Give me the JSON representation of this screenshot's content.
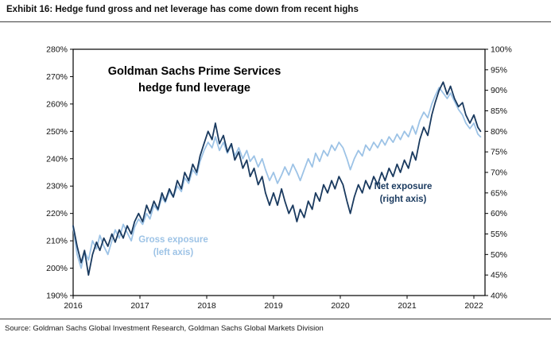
{
  "header": {
    "title": "Exhibit 16: Hedge fund gross and net leverage has come down from recent highs"
  },
  "footer": {
    "source": "Source: Goldman Sachs Global Investment Research, Goldman Sachs Global Markets Division"
  },
  "annotations": {
    "chart_title_line1": "Goldman Sachs Prime Services",
    "chart_title_line2": "hedge fund leverage",
    "net_label_line1": "Net exposure",
    "net_label_line2": "(right axis)",
    "gross_label_line1": "Gross exposure",
    "gross_label_line2": "(left axis)"
  },
  "colors": {
    "gross": "#9dc3e6",
    "net": "#1a3a5f",
    "axis": "#000000",
    "text": "#111111"
  },
  "chart_data": {
    "type": "line",
    "title": "Goldman Sachs Prime Services hedge fund leverage",
    "grid": false,
    "legend_position": "inline-annotations",
    "x_ticks": [
      "2016",
      "2017",
      "2018",
      "2019",
      "2020",
      "2021",
      "2022"
    ],
    "left_axis": {
      "min": 190,
      "max": 280,
      "step": 10,
      "labels": [
        "280%",
        "270%",
        "260%",
        "250%",
        "240%",
        "230%",
        "220%",
        "210%",
        "200%",
        "190%"
      ]
    },
    "right_axis": {
      "min": 40,
      "max": 100,
      "step": 5,
      "labels": [
        "100%",
        "95%",
        "90%",
        "85%",
        "80%",
        "75%",
        "70%",
        "65%",
        "60%",
        "55%",
        "50%",
        "45%",
        "40%"
      ]
    },
    "x": [
      2016.0,
      2016.06,
      2016.12,
      2016.17,
      2016.23,
      2016.29,
      2016.35,
      2016.4,
      2016.46,
      2016.52,
      2016.58,
      2016.63,
      2016.69,
      2016.75,
      2016.81,
      2016.87,
      2016.92,
      2016.98,
      2017.04,
      2017.1,
      2017.15,
      2017.21,
      2017.27,
      2017.33,
      2017.38,
      2017.44,
      2017.5,
      2017.56,
      2017.62,
      2017.67,
      2017.73,
      2017.79,
      2017.85,
      2017.9,
      2017.96,
      2018.02,
      2018.08,
      2018.13,
      2018.19,
      2018.25,
      2018.31,
      2018.37,
      2018.42,
      2018.48,
      2018.54,
      2018.6,
      2018.65,
      2018.71,
      2018.77,
      2018.83,
      2018.88,
      2018.94,
      2019.0,
      2019.06,
      2019.12,
      2019.17,
      2019.23,
      2019.29,
      2019.35,
      2019.4,
      2019.46,
      2019.52,
      2019.58,
      2019.63,
      2019.69,
      2019.75,
      2019.81,
      2019.87,
      2019.92,
      2019.98,
      2020.04,
      2020.1,
      2020.15,
      2020.21,
      2020.27,
      2020.33,
      2020.38,
      2020.44,
      2020.5,
      2020.56,
      2020.62,
      2020.67,
      2020.73,
      2020.79,
      2020.85,
      2020.9,
      2020.96,
      2021.02,
      2021.08,
      2021.13,
      2021.19,
      2021.25,
      2021.31,
      2021.37,
      2021.42,
      2021.48,
      2021.54,
      2021.6,
      2021.65,
      2021.71,
      2021.77,
      2021.83,
      2021.88,
      2021.94,
      2022.0,
      2022.06,
      2022.1
    ],
    "series": [
      {
        "name": "Gross exposure",
        "axis": "left",
        "color": "#9dc3e6",
        "values": [
          215,
          205,
          200,
          206,
          203,
          210,
          207,
          212,
          208,
          205,
          210,
          214,
          211,
          216,
          213,
          210,
          215,
          218,
          216,
          220,
          218,
          223,
          221,
          226,
          224,
          228,
          226,
          230,
          228,
          233,
          231,
          236,
          234,
          239,
          243,
          246,
          244,
          248,
          243,
          246,
          242,
          245,
          241,
          244,
          240,
          243,
          239,
          241,
          237,
          240,
          236,
          232,
          235,
          231,
          234,
          237,
          234,
          238,
          235,
          232,
          236,
          240,
          237,
          242,
          239,
          243,
          241,
          245,
          243,
          246,
          244,
          240,
          236,
          240,
          243,
          241,
          245,
          243,
          246,
          244,
          247,
          245,
          248,
          246,
          249,
          247,
          250,
          248,
          252,
          249,
          254,
          257,
          255,
          260,
          263,
          266,
          264,
          262,
          264,
          261,
          258,
          256,
          253,
          251,
          253,
          249,
          248
        ]
      },
      {
        "name": "Net exposure",
        "axis": "right",
        "color": "#1a3a5f",
        "values": [
          57,
          52,
          48,
          51,
          45,
          50,
          53,
          51,
          54,
          52,
          55,
          53,
          56,
          54,
          57,
          55,
          58,
          60,
          58,
          62,
          60,
          63,
          61,
          65,
          63,
          66,
          64,
          68,
          66,
          70,
          68,
          72,
          70,
          74,
          77,
          80,
          78,
          82,
          77,
          79,
          75,
          77,
          73,
          75,
          71,
          73,
          69,
          71,
          67,
          69,
          65,
          62,
          65,
          62,
          66,
          63,
          60,
          62,
          58,
          61,
          59,
          63,
          61,
          65,
          63,
          67,
          65,
          68,
          66,
          69,
          67,
          63,
          60,
          64,
          67,
          65,
          68,
          66,
          69,
          67,
          70,
          68,
          71,
          69,
          72,
          70,
          73,
          71,
          75,
          73,
          78,
          81,
          79,
          84,
          87,
          90,
          92,
          89,
          91,
          88,
          86,
          87,
          84,
          82,
          84,
          81,
          80
        ]
      }
    ]
  }
}
